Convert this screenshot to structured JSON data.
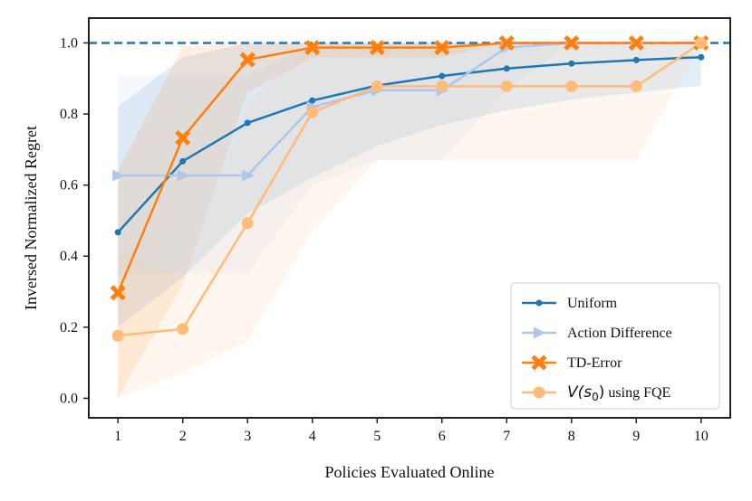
{
  "chart_data": {
    "type": "line",
    "xlabel": "Policies Evaluated Online",
    "ylabel": "Inversed Normalized Regret",
    "x": [
      1,
      2,
      3,
      4,
      5,
      6,
      7,
      8,
      9,
      10
    ],
    "xlim": [
      0.55,
      10.45
    ],
    "ylim": [
      -0.055,
      1.07
    ],
    "xticks": [
      1,
      2,
      3,
      4,
      5,
      6,
      7,
      8,
      9,
      10
    ],
    "yticks": [
      0.0,
      0.2,
      0.4,
      0.6,
      0.8,
      1.0
    ],
    "ytick_labels": [
      "0.0",
      "0.2",
      "0.4",
      "0.6",
      "0.8",
      "1.0"
    ],
    "reference_line": {
      "y": 1.0,
      "style": "dashed",
      "color": "#1f77b4"
    },
    "grid": false,
    "legend_position": "lower-right",
    "series": [
      {
        "name": "Uniform",
        "color": "#1f77b4",
        "marker": "circle",
        "values": [
          0.467,
          0.667,
          0.775,
          0.838,
          0.88,
          0.907,
          0.928,
          0.942,
          0.952,
          0.96
        ],
        "band_low": [
          0.2,
          0.34,
          0.52,
          0.62,
          0.71,
          0.77,
          0.81,
          0.84,
          0.86,
          0.88
        ],
        "band_high": [
          0.82,
          0.96,
          1.0,
          1.0,
          1.0,
          1.0,
          1.0,
          1.0,
          1.0,
          1.0
        ]
      },
      {
        "name": "Action Difference",
        "color": "#aec7e8",
        "marker": "triangle-right",
        "values": [
          0.627,
          0.627,
          0.627,
          0.82,
          0.867,
          0.867,
          0.987,
          1.0,
          1.0,
          1.0
        ],
        "band_low": [
          0.35,
          0.35,
          0.35,
          0.6,
          0.67,
          0.67,
          0.87,
          1.0,
          1.0,
          1.0
        ],
        "band_high": [
          0.91,
          0.91,
          0.91,
          1.0,
          1.0,
          1.0,
          1.0,
          1.0,
          1.0,
          1.0
        ]
      },
      {
        "name": "TD-Error",
        "color": "#ff7f0e",
        "marker": "x-filled",
        "values": [
          0.297,
          0.733,
          0.953,
          0.987,
          0.987,
          0.987,
          1.0,
          1.0,
          1.0,
          1.0
        ],
        "band_low": [
          0.0,
          0.32,
          0.86,
          0.96,
          0.96,
          0.96,
          1.0,
          1.0,
          1.0,
          1.0
        ],
        "band_high": [
          0.64,
          0.99,
          1.0,
          1.0,
          1.0,
          1.0,
          1.0,
          1.0,
          1.0,
          1.0
        ]
      },
      {
        "name": "V(s0) using FQE",
        "color": "#ffbb78",
        "marker": "circle",
        "values": [
          0.176,
          0.195,
          0.493,
          0.805,
          0.878,
          0.878,
          0.878,
          0.878,
          0.878,
          1.0
        ],
        "band_low": [
          0.0,
          0.07,
          0.16,
          0.47,
          0.67,
          0.67,
          0.67,
          0.67,
          0.67,
          1.0
        ],
        "band_high": [
          0.42,
          0.34,
          0.83,
          1.0,
          1.0,
          1.0,
          1.0,
          1.0,
          1.0,
          1.0
        ]
      }
    ]
  }
}
